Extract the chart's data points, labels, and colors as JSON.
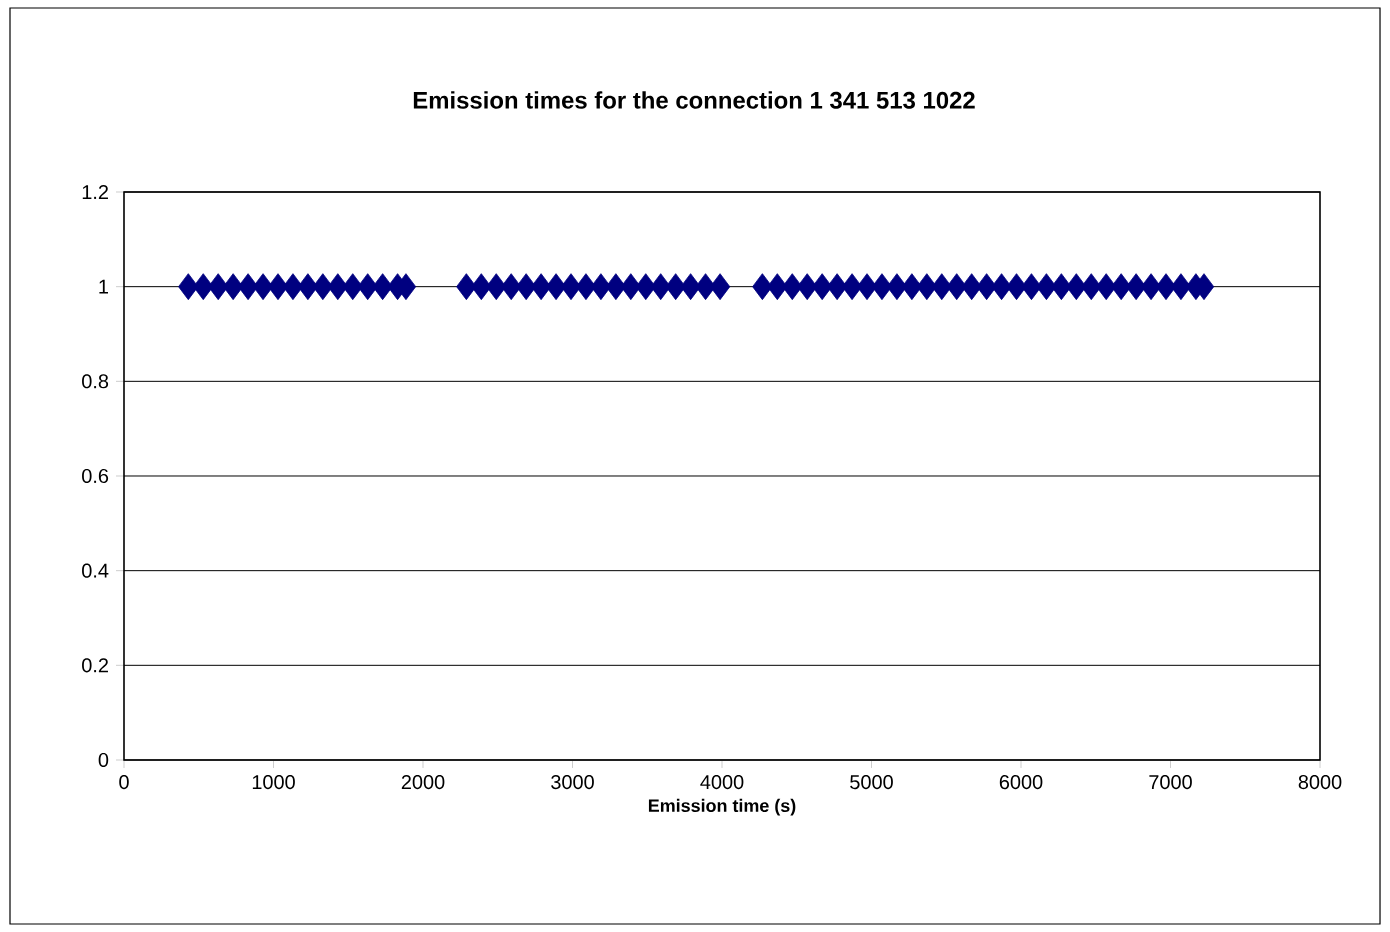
{
  "chart_data": {
    "type": "scatter",
    "title": "Emission times for the connection 1 341 513 1022",
    "xlabel": "Emission time (s)",
    "x": [
      430,
      530,
      630,
      730,
      830,
      930,
      1030,
      1130,
      1230,
      1330,
      1430,
      1530,
      1630,
      1730,
      1830,
      1886,
      2290,
      2390,
      2490,
      2590,
      2690,
      2790,
      2890,
      2990,
      3090,
      3190,
      3290,
      3390,
      3490,
      3590,
      3690,
      3790,
      3890,
      3987,
      4270,
      4370,
      4470,
      4570,
      4670,
      4770,
      4870,
      4970,
      5070,
      5170,
      5270,
      5370,
      5470,
      5570,
      5670,
      5770,
      5870,
      5970,
      6070,
      6170,
      6270,
      6370,
      6470,
      6570,
      6670,
      6770,
      6870,
      6970,
      7070,
      7170,
      7224
    ],
    "values": [
      1,
      1,
      1,
      1,
      1,
      1,
      1,
      1,
      1,
      1,
      1,
      1,
      1,
      1,
      1,
      1,
      1,
      1,
      1,
      1,
      1,
      1,
      1,
      1,
      1,
      1,
      1,
      1,
      1,
      1,
      1,
      1,
      1,
      1,
      1,
      1,
      1,
      1,
      1,
      1,
      1,
      1,
      1,
      1,
      1,
      1,
      1,
      1,
      1,
      1,
      1,
      1,
      1,
      1,
      1,
      1,
      1,
      1,
      1,
      1,
      1,
      1,
      1,
      1,
      1
    ],
    "color": "#000080",
    "marker": "diamond",
    "xlim": [
      0,
      8000
    ],
    "xticks": [
      0,
      1000,
      2000,
      3000,
      4000,
      5000,
      6000,
      7000,
      8000
    ],
    "ylim": [
      0,
      1.2
    ],
    "yticks": [
      0,
      0.2,
      0.4,
      0.6,
      0.8,
      1,
      1.2
    ],
    "grid": "y"
  }
}
